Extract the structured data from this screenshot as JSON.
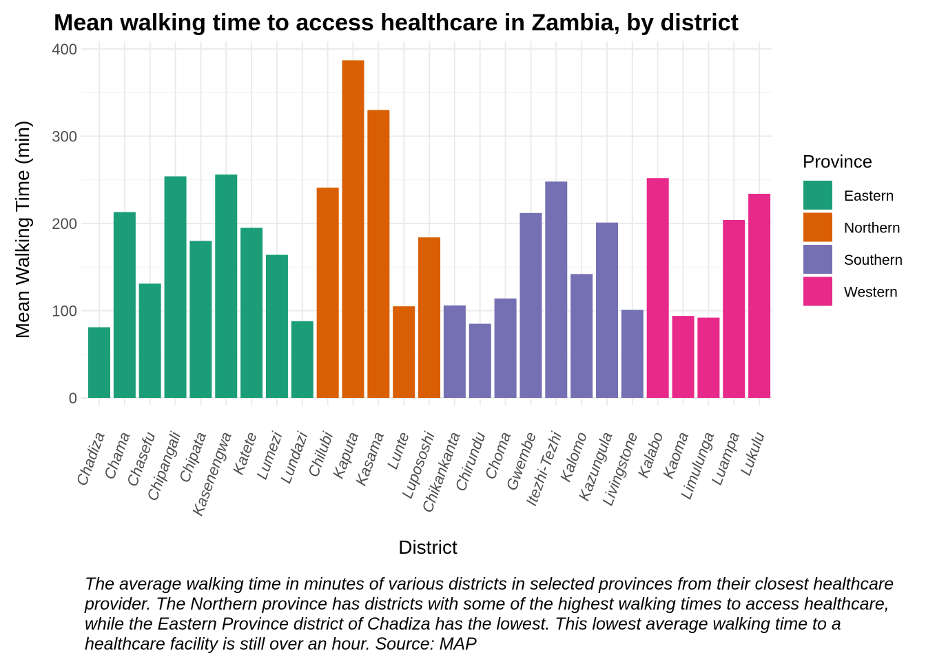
{
  "chart_data": {
    "type": "bar",
    "title": "Mean walking time to access healthcare in Zambia, by district",
    "xlabel": "District",
    "ylabel": "Mean Walking Time (min)",
    "ylim": [
      0,
      400
    ],
    "yticks": [
      0,
      100,
      200,
      300,
      400
    ],
    "grid": true,
    "legend": {
      "title": "Province",
      "position": "right"
    },
    "categories": [
      "Chadiza",
      "Chama",
      "Chasefu",
      "Chipangali",
      "Chipata",
      "Kasenengwa",
      "Katete",
      "Lumezi",
      "Lundazi",
      "Chilubi",
      "Kaputa",
      "Kasama",
      "Lunte",
      "Lupososhi",
      "Chikankanta",
      "Chirundu",
      "Choma",
      "Gwembe",
      "Itezhi-Tezhi",
      "Kalomo",
      "Kazungula",
      "Livingstone",
      "Kalabo",
      "Kaoma",
      "Limulunga",
      "Luampa",
      "Lukulu"
    ],
    "values": [
      81,
      213,
      131,
      254,
      180,
      256,
      195,
      164,
      88,
      241,
      387,
      330,
      105,
      184,
      106,
      85,
      114,
      212,
      248,
      142,
      201,
      101,
      252,
      94,
      92,
      204,
      234
    ],
    "groups": [
      "Eastern",
      "Eastern",
      "Eastern",
      "Eastern",
      "Eastern",
      "Eastern",
      "Eastern",
      "Eastern",
      "Eastern",
      "Northern",
      "Northern",
      "Northern",
      "Northern",
      "Northern",
      "Southern",
      "Southern",
      "Southern",
      "Southern",
      "Southern",
      "Southern",
      "Southern",
      "Southern",
      "Western",
      "Western",
      "Western",
      "Western",
      "Western"
    ],
    "series": [
      {
        "name": "Eastern",
        "color": "#1b9e77"
      },
      {
        "name": "Northern",
        "color": "#d95f02"
      },
      {
        "name": "Southern",
        "color": "#7570b3"
      },
      {
        "name": "Western",
        "color": "#e7298a"
      }
    ],
    "caption": "The average walking time in minutes of various districts in selected provinces from their closest healthcare provider. The Northern province has districts with some of the highest walking times to access healthcare, while the Eastern Province district of Chadiza has the lowest. This lowest average walking time to a healthcare facility is still over an hour. Source: MAP"
  }
}
